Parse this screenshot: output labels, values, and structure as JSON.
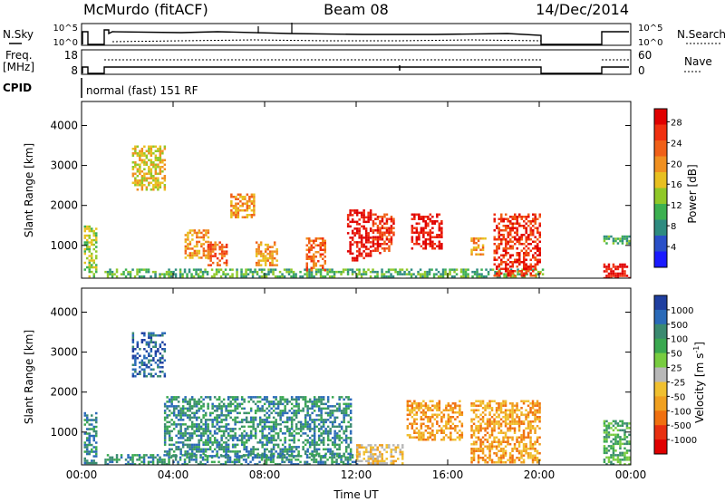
{
  "header": {
    "station": "McMurdo (fitACF)",
    "beam": "Beam 08",
    "date": "14/Dec/2014"
  },
  "strip_labels": {
    "nsky": "N.Sky",
    "nsearch": "N.Search",
    "freq_line1": "Freq.",
    "freq_line2": "[MHz]",
    "nave": "Nave",
    "cpid": "CPID",
    "cpid_value": "normal (fast) 151 RF",
    "noise_ticks_left": [
      "10^5",
      "10^0"
    ],
    "noise_ticks_right": [
      "10^5",
      "10^0"
    ],
    "freq_ticks": [
      "18",
      "8"
    ],
    "nave_ticks": [
      "60",
      "0"
    ]
  },
  "chart_data": [
    {
      "type": "heatmap",
      "name": "power",
      "xlabel": "",
      "ylabel": "Slant Range [km]",
      "x_ticks": [
        "00:00",
        "04:00",
        "08:00",
        "12:00",
        "16:00",
        "20:00",
        "00:00"
      ],
      "xlim_hours": [
        0,
        24
      ],
      "y_ticks": [
        1000,
        2000,
        3000,
        4000
      ],
      "ylim": [
        180,
        4600
      ],
      "colorbar": {
        "label": "Power [dB]",
        "ticks": [
          "4",
          "8",
          "12",
          "16",
          "20",
          "24",
          "28"
        ],
        "colors": [
          "#1a1aff",
          "#2a50c8",
          "#2e8b80",
          "#3cb050",
          "#90c828",
          "#e8c020",
          "#f09020",
          "#f06018",
          "#f03010",
          "#e00000"
        ],
        "range": [
          0,
          30
        ]
      },
      "features": [
        {
          "t0": 0.1,
          "t1": 0.6,
          "r0": 200,
          "r1": 1500,
          "level": 12
        },
        {
          "t0": 1.0,
          "t1": 20.2,
          "r0": 180,
          "r1": 420,
          "level": 10
        },
        {
          "t0": 2.2,
          "t1": 3.6,
          "r0": 2400,
          "r1": 3500,
          "level": 16
        },
        {
          "t0": 4.5,
          "t1": 5.5,
          "r0": 700,
          "r1": 1400,
          "level": 18
        },
        {
          "t0": 5.5,
          "t1": 6.3,
          "r0": 500,
          "r1": 1100,
          "level": 22
        },
        {
          "t0": 6.5,
          "t1": 7.5,
          "r0": 1700,
          "r1": 2300,
          "level": 20
        },
        {
          "t0": 7.6,
          "t1": 8.5,
          "r0": 500,
          "r1": 1100,
          "level": 20
        },
        {
          "t0": 9.8,
          "t1": 10.6,
          "r0": 400,
          "r1": 1200,
          "level": 22
        },
        {
          "t0": 11.6,
          "t1": 12.6,
          "r0": 600,
          "r1": 1900,
          "level": 28
        },
        {
          "t0": 12.7,
          "t1": 13.6,
          "r0": 800,
          "r1": 1800,
          "level": 24
        },
        {
          "t0": 14.4,
          "t1": 15.7,
          "r0": 900,
          "r1": 1800,
          "level": 28
        },
        {
          "t0": 17.0,
          "t1": 17.6,
          "r0": 800,
          "r1": 1200,
          "level": 18
        },
        {
          "t0": 18.0,
          "t1": 20.0,
          "r0": 250,
          "r1": 1800,
          "level": 24
        },
        {
          "t0": 22.8,
          "t1": 24.0,
          "r0": 200,
          "r1": 550,
          "level": 28
        },
        {
          "t0": 22.8,
          "t1": 24.0,
          "r0": 1050,
          "r1": 1250,
          "level": 10
        }
      ]
    },
    {
      "type": "heatmap",
      "name": "velocity",
      "xlabel": "Time UT",
      "ylabel": "Slant Range [km]",
      "x_ticks": [
        "00:00",
        "04:00",
        "08:00",
        "12:00",
        "16:00",
        "20:00",
        "00:00"
      ],
      "xlim_hours": [
        0,
        24
      ],
      "y_ticks": [
        1000,
        2000,
        3000,
        4000
      ],
      "ylim": [
        180,
        4600
      ],
      "colorbar": {
        "label": "Velocity [m s^-1]",
        "ticks": [
          "1000",
          "500",
          "100",
          "50",
          "25",
          "-25",
          "-50",
          "-100",
          "-500",
          "-1000"
        ],
        "colors": [
          "#1f3fa0",
          "#2a6ab8",
          "#3a8a70",
          "#3aa850",
          "#78cc40",
          "#b8b8b8",
          "#f0c030",
          "#f0a020",
          "#f07010",
          "#e83010",
          "#e00000"
        ]
      },
      "features": [
        {
          "t0": 0.1,
          "t1": 0.6,
          "r0": 200,
          "r1": 1500,
          "v": 100
        },
        {
          "t0": 1.0,
          "t1": 12.0,
          "r0": 180,
          "r1": 450,
          "v": 100
        },
        {
          "t0": 2.2,
          "t1": 3.6,
          "r0": 2400,
          "r1": 3500,
          "v": 500
        },
        {
          "t0": 3.6,
          "t1": 11.8,
          "r0": 400,
          "r1": 1900,
          "v": 100
        },
        {
          "t0": 12.0,
          "t1": 14.0,
          "r0": 180,
          "r1": 700,
          "v": -50
        },
        {
          "t0": 14.2,
          "t1": 16.6,
          "r0": 800,
          "r1": 1800,
          "v": -100
        },
        {
          "t0": 17.0,
          "t1": 20.0,
          "r0": 250,
          "r1": 1800,
          "v": -100
        },
        {
          "t0": 22.8,
          "t1": 24.0,
          "r0": 200,
          "r1": 1300,
          "v": 50
        }
      ]
    }
  ]
}
